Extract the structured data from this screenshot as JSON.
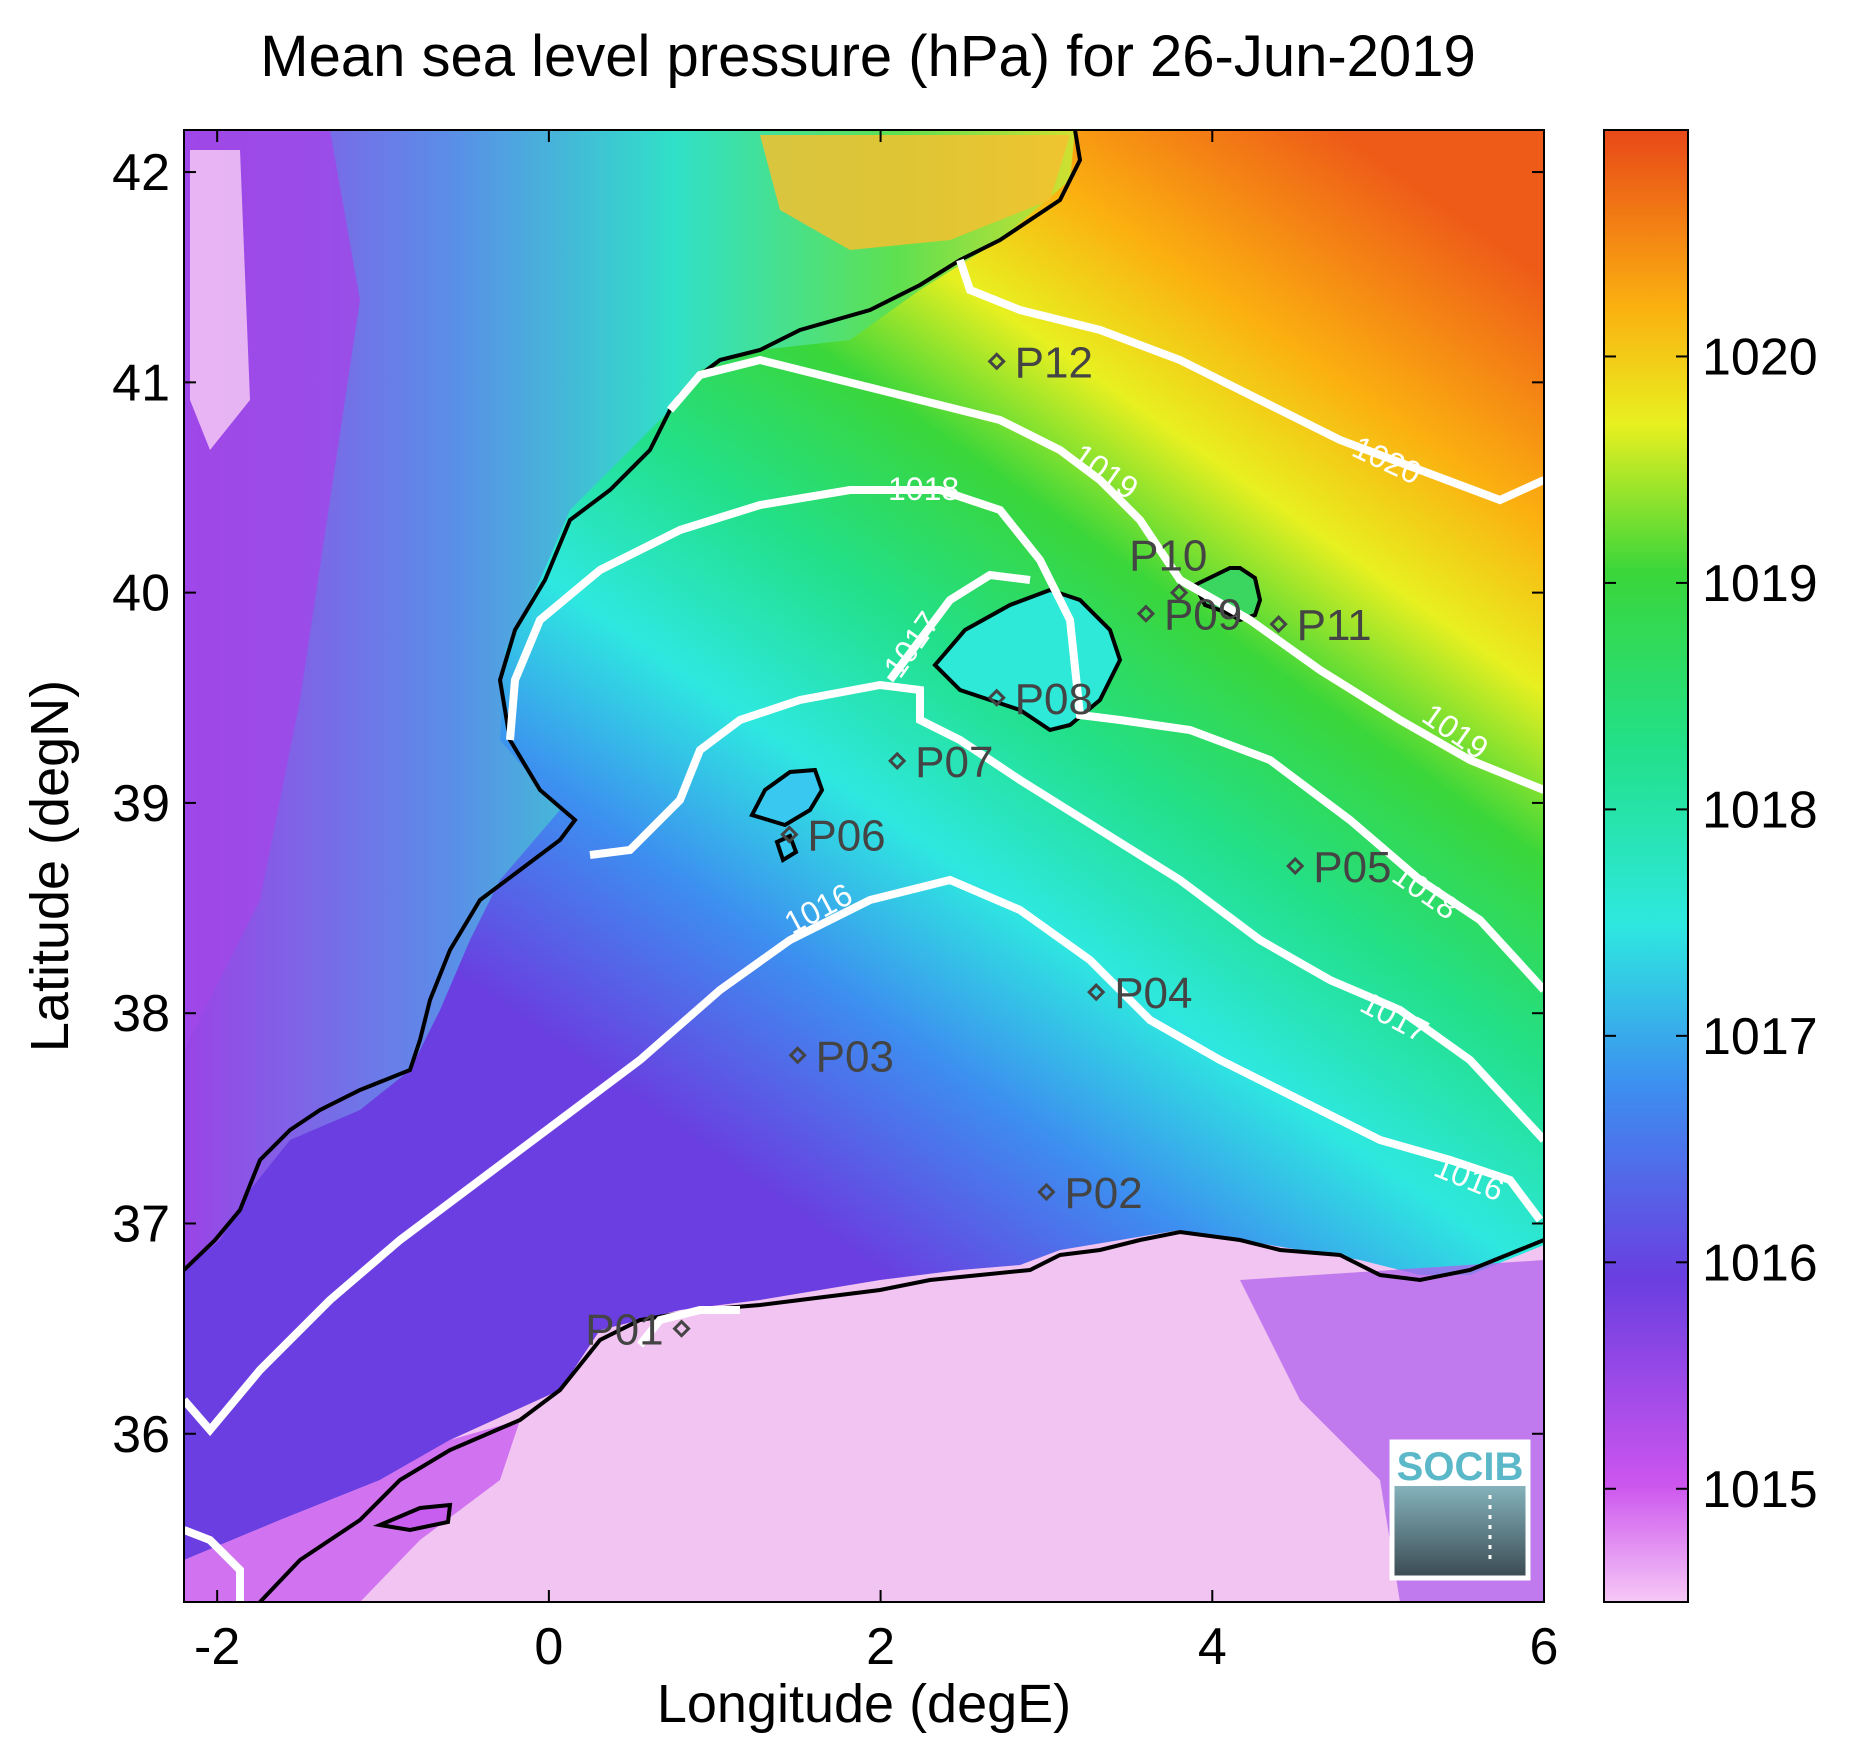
{
  "title": "Mean sea level pressure (hPa) for 26-Jun-2019",
  "xlabel": "Longitude (degE)",
  "ylabel": "Latitude (degN)",
  "x_ticks": [
    "-2",
    "0",
    "2",
    "4",
    "6"
  ],
  "y_ticks": [
    "36",
    "37",
    "38",
    "39",
    "40",
    "41",
    "42"
  ],
  "colorbar_ticks": [
    "1015",
    "1016",
    "1017",
    "1018",
    "1019",
    "1020"
  ],
  "colorbar_range": [
    1014.5,
    1021
  ],
  "logo": "SOCIB",
  "points": [
    {
      "label": "P01",
      "lon": 0.8,
      "lat": 36.5
    },
    {
      "label": "P02",
      "lon": 3.0,
      "lat": 37.15
    },
    {
      "label": "P03",
      "lon": 1.5,
      "lat": 37.8
    },
    {
      "label": "P04",
      "lon": 3.3,
      "lat": 38.1
    },
    {
      "label": "P05",
      "lon": 4.5,
      "lat": 38.7
    },
    {
      "label": "P06",
      "lon": 1.45,
      "lat": 38.85
    },
    {
      "label": "P07",
      "lon": 2.1,
      "lat": 39.2
    },
    {
      "label": "P08",
      "lon": 2.7,
      "lat": 39.5
    },
    {
      "label": "P09",
      "lon": 3.6,
      "lat": 39.9
    },
    {
      "label": "P10",
      "lon": 3.8,
      "lat": 40.0
    },
    {
      "label": "P11",
      "lon": 4.4,
      "lat": 39.85
    },
    {
      "label": "P12",
      "lon": 2.7,
      "lat": 41.1
    }
  ],
  "contour_labels": [
    "1016",
    "1016",
    "1017",
    "1017",
    "1018",
    "1018",
    "1019",
    "1019",
    "1020"
  ]
}
